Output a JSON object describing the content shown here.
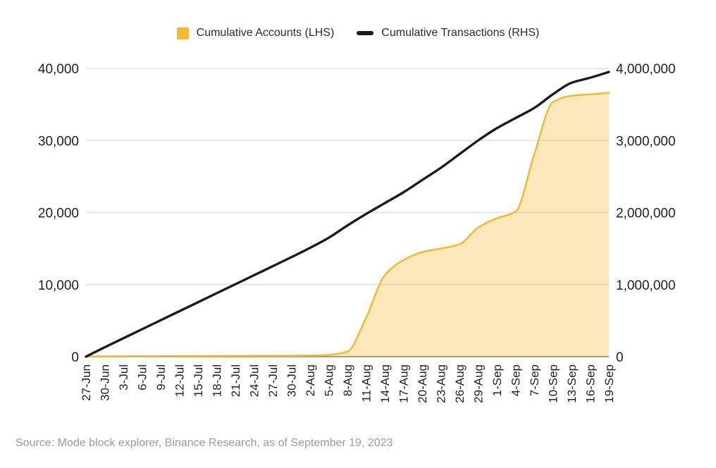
{
  "legend": {
    "accounts_label": "Cumulative Accounts (LHS)",
    "transactions_label": "Cumulative Transactions (RHS)"
  },
  "source_note": "Source: Mode block explorer, Binance Research, as of September 19, 2023",
  "colors": {
    "accounts": "#F3BA2F",
    "accounts_fill": "rgba(243,186,47,0.33)",
    "transactions": "#1b1b1b",
    "gridline": "#e2e2e2",
    "axis_line": "#979789",
    "axis_text": "#1f1f1f",
    "source_text": "#9b9b9d"
  },
  "chart_data": {
    "type": "area",
    "title": "",
    "categories": [
      "27-Jun",
      "30-Jun",
      "3-Jul",
      "6-Jul",
      "9-Jul",
      "12-Jul",
      "15-Jul",
      "18-Jul",
      "21-Jul",
      "24-Jul",
      "27-Jul",
      "30-Jul",
      "2-Aug",
      "5-Aug",
      "8-Aug",
      "11-Aug",
      "14-Aug",
      "17-Aug",
      "20-Aug",
      "23-Aug",
      "26-Aug",
      "29-Aug",
      "1-Sep",
      "4-Sep",
      "7-Sep",
      "10-Sep",
      "13-Sep",
      "16-Sep",
      "19-Sep"
    ],
    "series": [
      {
        "name": "Cumulative Accounts (LHS)",
        "style": "area",
        "axis": "lhs",
        "values": [
          30,
          40,
          50,
          60,
          70,
          80,
          90,
          100,
          110,
          120,
          130,
          140,
          160,
          250,
          700,
          5400,
          11300,
          13400,
          14500,
          15000,
          15600,
          17900,
          19200,
          20100,
          28000,
          35300,
          36200,
          36400,
          36600
        ]
      },
      {
        "name": "Cumulative Transactions (RHS)",
        "style": "line",
        "axis": "rhs",
        "values": [
          0,
          130000,
          255000,
          380000,
          505000,
          630000,
          755000,
          880000,
          1005000,
          1130000,
          1255000,
          1380000,
          1510000,
          1650000,
          1820000,
          1980000,
          2130000,
          2280000,
          2450000,
          2620000,
          2810000,
          3000000,
          3170000,
          3310000,
          3450000,
          3640000,
          3800000,
          3870000,
          3950000
        ]
      }
    ],
    "lhs_axis": {
      "min": 0,
      "max": 40000,
      "tick_labels": [
        "0",
        "10,000",
        "20,000",
        "30,000",
        "40,000"
      ]
    },
    "rhs_axis": {
      "min": 0,
      "max": 4000000,
      "tick_labels": [
        "0",
        "1,000,000",
        "2,000,000",
        "3,000,000",
        "4,000,000"
      ]
    },
    "grid": true,
    "legend_position": "top"
  }
}
